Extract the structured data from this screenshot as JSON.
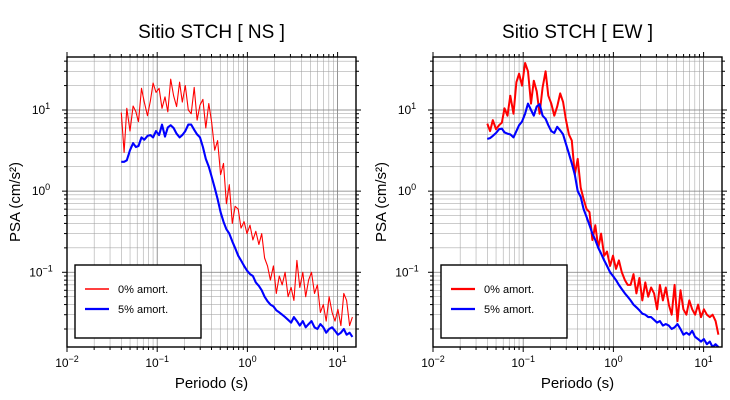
{
  "chart_data": [
    {
      "type": "line",
      "title": "Sitio STCH [ NS ]",
      "xlabel": "Periodo (s)",
      "ylabel": "PSA (cm/s²)",
      "x_scale": "log",
      "y_scale": "log",
      "xlim": [
        0.01,
        16
      ],
      "ylim": [
        0.012,
        45
      ],
      "x_ticks": [
        {
          "value": 0.01,
          "base": "10",
          "exp": "−2"
        },
        {
          "value": 0.1,
          "base": "10",
          "exp": "−1"
        },
        {
          "value": 1,
          "base": "10",
          "exp": "0"
        },
        {
          "value": 10,
          "base": "10",
          "exp": "1"
        }
      ],
      "y_ticks": [
        {
          "value": 0.1,
          "base": "10",
          "exp": "−1"
        },
        {
          "value": 1,
          "base": "10",
          "exp": "0"
        },
        {
          "value": 10,
          "base": "10",
          "exp": "1"
        }
      ],
      "grid": true,
      "legend_position": "bottom-left",
      "series": [
        {
          "name": "0% amort.",
          "color": "#ff0000",
          "x": [
            0.04,
            0.043,
            0.046,
            0.05,
            0.054,
            0.058,
            0.062,
            0.067,
            0.072,
            0.078,
            0.084,
            0.09,
            0.097,
            0.105,
            0.113,
            0.122,
            0.131,
            0.141,
            0.152,
            0.164,
            0.177,
            0.19,
            0.205,
            0.221,
            0.238,
            0.257,
            0.277,
            0.298,
            0.321,
            0.346,
            0.373,
            0.402,
            0.434,
            0.467,
            0.504,
            0.543,
            0.585,
            0.63,
            0.68,
            0.73,
            0.79,
            0.85,
            0.92,
            0.99,
            1.07,
            1.15,
            1.24,
            1.34,
            1.44,
            1.55,
            1.67,
            1.8,
            1.94,
            2.09,
            2.26,
            2.43,
            2.62,
            2.83,
            3.05,
            3.28,
            3.54,
            3.81,
            4.11,
            4.43,
            4.77,
            5.14,
            5.54,
            5.97,
            6.44,
            6.94,
            7.48,
            8.06,
            8.69,
            9.36,
            10.09,
            10.87,
            11.72,
            12.6,
            13.6,
            14.6
          ],
          "y": [
            9.3,
            3.0,
            10.5,
            5.5,
            11.2,
            9.5,
            7.2,
            18.5,
            12.5,
            8.5,
            13.0,
            21.5,
            16.5,
            18.5,
            10.5,
            14.5,
            9.5,
            24.0,
            15.0,
            11.0,
            22.0,
            12.5,
            20.0,
            10.0,
            9.0,
            19.0,
            7.5,
            11.5,
            13.5,
            6.0,
            12.0,
            7.0,
            3.2,
            4.2,
            1.6,
            2.2,
            0.7,
            1.2,
            0.4,
            0.65,
            0.6,
            0.35,
            0.42,
            0.3,
            0.38,
            0.25,
            0.32,
            0.22,
            0.3,
            0.15,
            0.12,
            0.08,
            0.12,
            0.055,
            0.09,
            0.07,
            0.1,
            0.05,
            0.065,
            0.045,
            0.14,
            0.065,
            0.1,
            0.05,
            0.08,
            0.1,
            0.055,
            0.07,
            0.032,
            0.04,
            0.025,
            0.05,
            0.032,
            0.025,
            0.035,
            0.022,
            0.055,
            0.045,
            0.022,
            0.028
          ]
        },
        {
          "name": "5% amort.",
          "color": "#0000ff",
          "x": [
            0.04,
            0.043,
            0.046,
            0.05,
            0.054,
            0.058,
            0.062,
            0.067,
            0.072,
            0.078,
            0.084,
            0.09,
            0.097,
            0.105,
            0.113,
            0.122,
            0.131,
            0.141,
            0.152,
            0.164,
            0.177,
            0.19,
            0.205,
            0.221,
            0.238,
            0.257,
            0.277,
            0.298,
            0.321,
            0.346,
            0.373,
            0.402,
            0.434,
            0.467,
            0.504,
            0.543,
            0.585,
            0.63,
            0.68,
            0.73,
            0.79,
            0.85,
            0.92,
            0.99,
            1.07,
            1.15,
            1.24,
            1.34,
            1.44,
            1.55,
            1.67,
            1.8,
            1.94,
            2.09,
            2.26,
            2.43,
            2.62,
            2.83,
            3.05,
            3.28,
            3.54,
            3.81,
            4.11,
            4.43,
            4.77,
            5.14,
            5.54,
            5.97,
            6.44,
            6.94,
            7.48,
            8.06,
            8.69,
            9.36,
            10.09,
            10.87,
            11.72,
            12.6,
            13.6,
            14.6
          ],
          "y": [
            2.3,
            2.3,
            2.4,
            3.2,
            3.9,
            3.5,
            3.6,
            4.6,
            4.3,
            4.8,
            4.9,
            4.6,
            5.5,
            4.9,
            6.6,
            4.7,
            6.1,
            6.5,
            6.0,
            5.1,
            4.6,
            4.9,
            5.5,
            6.6,
            6.6,
            5.7,
            5.0,
            4.6,
            3.5,
            2.5,
            2.0,
            1.5,
            1.1,
            0.8,
            0.55,
            0.42,
            0.34,
            0.3,
            0.24,
            0.2,
            0.16,
            0.14,
            0.12,
            0.105,
            0.095,
            0.09,
            0.075,
            0.068,
            0.06,
            0.05,
            0.044,
            0.04,
            0.038,
            0.034,
            0.032,
            0.03,
            0.028,
            0.026,
            0.024,
            0.028,
            0.025,
            0.022,
            0.025,
            0.021,
            0.023,
            0.025,
            0.021,
            0.02,
            0.023,
            0.021,
            0.018,
            0.02,
            0.021,
            0.019,
            0.017,
            0.018,
            0.02,
            0.017,
            0.018,
            0.016
          ]
        }
      ]
    },
    {
      "type": "line",
      "title": "Sitio STCH [ EW ]",
      "xlabel": "Periodo (s)",
      "ylabel": "PSA (cm/s²)",
      "x_scale": "log",
      "y_scale": "log",
      "xlim": [
        0.01,
        16
      ],
      "ylim": [
        0.012,
        45
      ],
      "x_ticks": [
        {
          "value": 0.01,
          "base": "10",
          "exp": "−2"
        },
        {
          "value": 0.1,
          "base": "10",
          "exp": "−1"
        },
        {
          "value": 1,
          "base": "10",
          "exp": "0"
        },
        {
          "value": 10,
          "base": "10",
          "exp": "1"
        }
      ],
      "y_ticks": [
        {
          "value": 0.1,
          "base": "10",
          "exp": "−1"
        },
        {
          "value": 1,
          "base": "10",
          "exp": "0"
        },
        {
          "value": 10,
          "base": "10",
          "exp": "1"
        }
      ],
      "grid": true,
      "legend_position": "bottom-left",
      "series": [
        {
          "name": "0% amort.",
          "color": "#ff0000",
          "x": [
            0.04,
            0.043,
            0.046,
            0.05,
            0.054,
            0.058,
            0.062,
            0.067,
            0.072,
            0.078,
            0.084,
            0.09,
            0.097,
            0.105,
            0.113,
            0.122,
            0.131,
            0.141,
            0.152,
            0.164,
            0.177,
            0.19,
            0.205,
            0.221,
            0.238,
            0.257,
            0.277,
            0.298,
            0.321,
            0.346,
            0.373,
            0.402,
            0.434,
            0.467,
            0.504,
            0.543,
            0.585,
            0.63,
            0.68,
            0.73,
            0.79,
            0.85,
            0.92,
            0.99,
            1.07,
            1.15,
            1.24,
            1.34,
            1.44,
            1.55,
            1.67,
            1.8,
            1.94,
            2.09,
            2.26,
            2.43,
            2.62,
            2.83,
            3.05,
            3.28,
            3.54,
            3.81,
            4.11,
            4.43,
            4.77,
            5.14,
            5.54,
            5.97,
            6.44,
            6.94,
            7.48,
            8.06,
            8.69,
            9.36,
            10.09,
            10.87,
            11.72,
            12.6,
            13.6,
            14.6
          ],
          "y": [
            6.8,
            5.5,
            7.5,
            5.8,
            6.5,
            7.0,
            10.5,
            8.5,
            15.0,
            9.0,
            22.0,
            28.0,
            20.0,
            38.0,
            30.0,
            12.0,
            23.0,
            17.0,
            9.0,
            19.0,
            30.0,
            15.0,
            12.0,
            8.5,
            11.0,
            16.0,
            12.5,
            7.5,
            5.0,
            4.2,
            1.6,
            2.5,
            1.1,
            0.8,
            0.6,
            0.55,
            0.25,
            0.38,
            0.2,
            0.3,
            0.16,
            0.18,
            0.12,
            0.16,
            0.11,
            0.14,
            0.1,
            0.08,
            0.07,
            0.07,
            0.095,
            0.055,
            0.085,
            0.045,
            0.075,
            0.05,
            0.065,
            0.055,
            0.035,
            0.07,
            0.045,
            0.065,
            0.04,
            0.03,
            0.07,
            0.025,
            0.06,
            0.035,
            0.03,
            0.045,
            0.035,
            0.03,
            0.04,
            0.028,
            0.035,
            0.03,
            0.028,
            0.03,
            0.025,
            0.017
          ]
        },
        {
          "name": "5% amort.",
          "color": "#0000ff",
          "x": [
            0.04,
            0.043,
            0.046,
            0.05,
            0.054,
            0.058,
            0.062,
            0.067,
            0.072,
            0.078,
            0.084,
            0.09,
            0.097,
            0.105,
            0.113,
            0.122,
            0.131,
            0.141,
            0.152,
            0.164,
            0.177,
            0.19,
            0.205,
            0.221,
            0.238,
            0.257,
            0.277,
            0.298,
            0.321,
            0.346,
            0.373,
            0.402,
            0.434,
            0.467,
            0.504,
            0.543,
            0.585,
            0.63,
            0.68,
            0.73,
            0.79,
            0.85,
            0.92,
            0.99,
            1.07,
            1.15,
            1.24,
            1.34,
            1.44,
            1.55,
            1.67,
            1.8,
            1.94,
            2.09,
            2.26,
            2.43,
            2.62,
            2.83,
            3.05,
            3.28,
            3.54,
            3.81,
            4.11,
            4.43,
            4.77,
            5.14,
            5.54,
            5.97,
            6.44,
            6.94,
            7.48,
            8.06,
            8.69,
            9.36,
            10.09,
            10.87,
            11.72,
            12.6,
            13.6,
            14.6
          ],
          "y": [
            4.4,
            4.5,
            4.8,
            5.2,
            5.8,
            5.9,
            5.3,
            5.1,
            5.0,
            4.6,
            5.5,
            6.5,
            7.2,
            9.0,
            12.0,
            10.0,
            8.5,
            11.0,
            11.8,
            8.5,
            7.8,
            6.5,
            5.5,
            5.2,
            6.2,
            5.6,
            5.0,
            3.8,
            2.9,
            2.2,
            1.6,
            1.0,
            0.85,
            0.6,
            0.48,
            0.38,
            0.3,
            0.25,
            0.2,
            0.17,
            0.14,
            0.12,
            0.1,
            0.09,
            0.08,
            0.07,
            0.062,
            0.055,
            0.05,
            0.045,
            0.04,
            0.037,
            0.034,
            0.031,
            0.03,
            0.028,
            0.028,
            0.026,
            0.024,
            0.025,
            0.022,
            0.023,
            0.022,
            0.02,
            0.021,
            0.023,
            0.02,
            0.017,
            0.018,
            0.017,
            0.019,
            0.016,
            0.015,
            0.014,
            0.015,
            0.013,
            0.014,
            0.012,
            0.013,
            0.012
          ]
        }
      ]
    }
  ]
}
